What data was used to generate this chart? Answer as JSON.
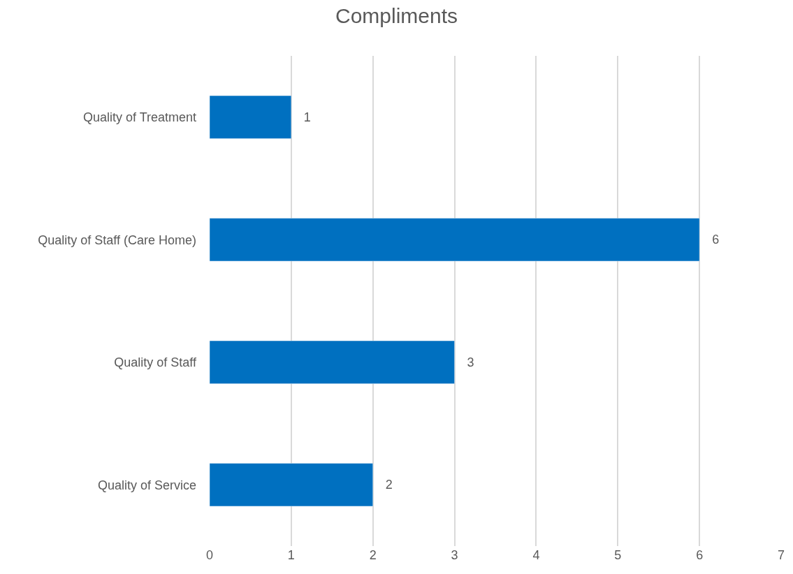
{
  "chart_data": {
    "type": "bar",
    "orientation": "horizontal",
    "title": "Compliments",
    "categories": [
      "Quality of Treatment",
      "Quality of Staff (Care Home)",
      "Quality of Staff",
      "Quality of Service"
    ],
    "values": [
      1,
      6,
      3,
      2
    ],
    "color": "#0070c0",
    "xlim": [
      0,
      7
    ],
    "xticks": [
      0,
      1,
      2,
      3,
      4,
      5,
      6,
      7
    ],
    "grid": "x",
    "data_labels": true
  }
}
